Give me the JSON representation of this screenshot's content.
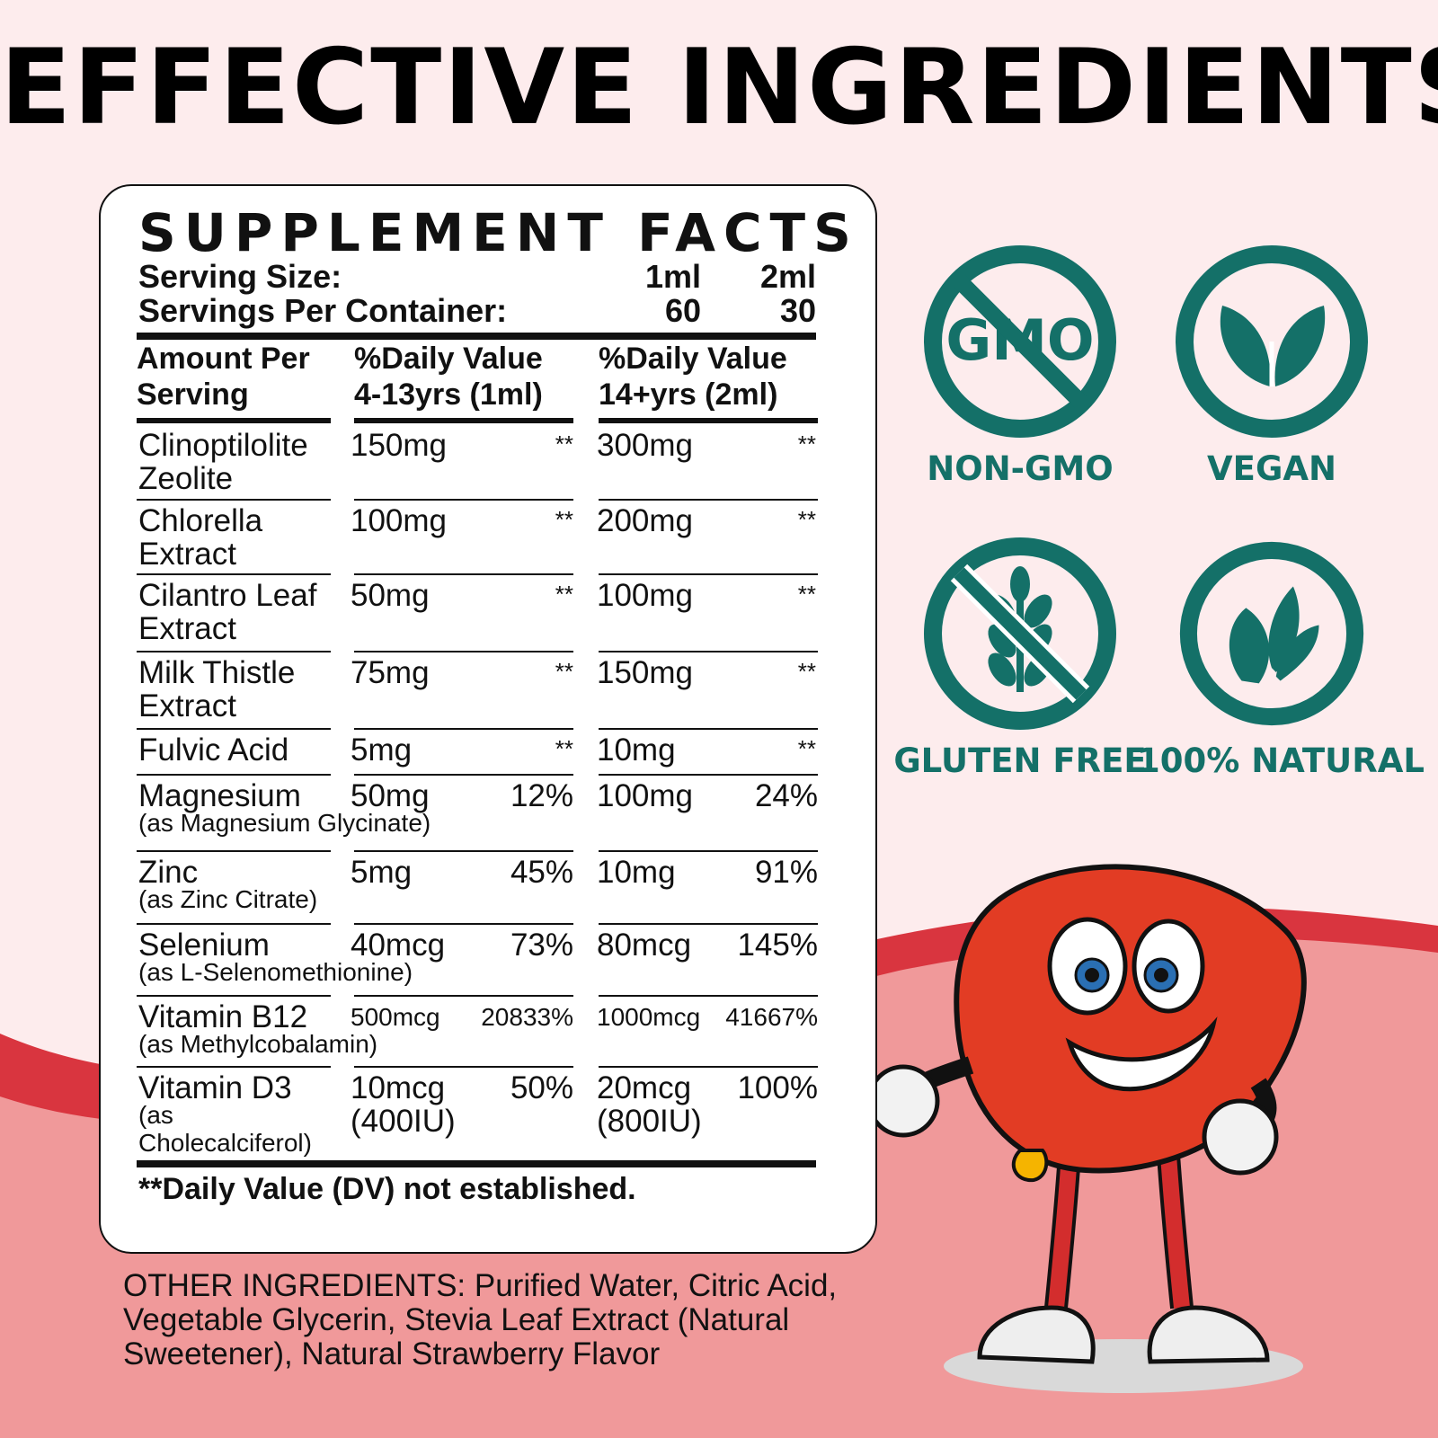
{
  "headline": "EFFECTIVE INGREDIENTS",
  "colors": {
    "background": "#fdeced",
    "wave_dark": "#d9353f",
    "wave_light": "#f0999a",
    "badge": "#147068",
    "text": "#111111"
  },
  "facts": {
    "title": "SUPPLEMENT FACTS",
    "serving_size_label": "Serving Size:",
    "serving_size_values": [
      "1ml",
      "2ml"
    ],
    "servings_per_container_label": "Servings Per Container:",
    "servings_per_container_values": [
      "60",
      "30"
    ],
    "headers": {
      "col1": [
        "Amount Per",
        "Serving"
      ],
      "col2": [
        "%Daily Value",
        "4-13yrs (1ml)"
      ],
      "col3": [
        "%Daily Value",
        "14+yrs (2ml)"
      ]
    },
    "rows": [
      {
        "name": [
          "Clinoptilolite",
          "Zeolite"
        ],
        "amount1": "150mg",
        "dv1": "**",
        "amount2": "300mg",
        "dv2": "**"
      },
      {
        "name": [
          "Chlorella",
          "Extract"
        ],
        "amount1": "100mg",
        "dv1": "**",
        "amount2": "200mg",
        "dv2": "**"
      },
      {
        "name": [
          "Cilantro Leaf",
          "Extract"
        ],
        "amount1": "50mg",
        "dv1": "**",
        "amount2": "100mg",
        "dv2": "**"
      },
      {
        "name": [
          "Milk Thistle",
          "Extract"
        ],
        "amount1": "75mg",
        "dv1": "**",
        "amount2": "150mg",
        "dv2": "**"
      },
      {
        "name": [
          "Fulvic Acid"
        ],
        "amount1": "5mg",
        "dv1": "**",
        "amount2": "10mg",
        "dv2": "**"
      },
      {
        "name": [
          "Magnesium"
        ],
        "sub": "(as Magnesium Glycinate)",
        "amount1": "50mg",
        "dv1": "12%",
        "amount2": "100mg",
        "dv2": "24%"
      },
      {
        "name": [
          "Zinc"
        ],
        "sub": "(as Zinc Citrate)",
        "amount1": "5mg",
        "dv1": "45%",
        "amount2": "10mg",
        "dv2": "91%"
      },
      {
        "name": [
          "Selenium"
        ],
        "sub": "(as L-Selenomethionine)",
        "amount1": "40mcg",
        "dv1": "73%",
        "amount2": "80mcg",
        "dv2": "145%"
      },
      {
        "name": [
          "Vitamin B12"
        ],
        "sub": "(as Methylcobalamin)",
        "amount1": "500mcg",
        "dv1": "20833%",
        "amount2": "1000mcg",
        "dv2": "41667%"
      },
      {
        "name": [
          "Vitamin D3"
        ],
        "sub_lines": [
          "(as",
          "Cholecalciferol)"
        ],
        "amount1": "10mcg",
        "amount1_sub": "(400IU)",
        "dv1": "50%",
        "amount2": "20mcg",
        "amount2_sub": "(800IU)",
        "dv2": "100%"
      }
    ],
    "footnote": "**Daily Value (DV) not established."
  },
  "other_ingredients": {
    "label": "OTHER INGREDIENTS:",
    "text": " Purified Water, Citric Acid, Vegetable Glycerin, Stevia Leaf Extract (Natural Sweetener), Natural Strawberry Flavor"
  },
  "badges": [
    {
      "label": "NON-GMO",
      "icon": "no-gmo-icon",
      "glyph": "GMO"
    },
    {
      "label": "VEGAN",
      "icon": "vegan-leaf-icon"
    },
    {
      "label": "GLUTEN FREE",
      "icon": "no-wheat-icon"
    },
    {
      "label": "100% NATURAL",
      "icon": "natural-leaves-icon"
    }
  ]
}
